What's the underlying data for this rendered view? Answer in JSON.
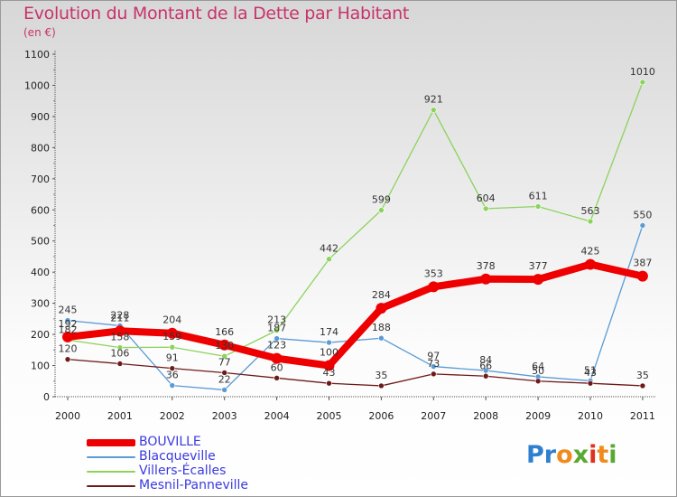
{
  "title": "Evolution du Montant de la Dette par Habitant",
  "subtitle": "(en €)",
  "logo": {
    "text": "Proxiti",
    "letters": [
      {
        "ch": "P",
        "color": "#2f7fd0"
      },
      {
        "ch": "r",
        "color": "#2f7fd0"
      },
      {
        "ch": "o",
        "color": "#f08a1c"
      },
      {
        "ch": "x",
        "color": "#5aa830"
      },
      {
        "ch": "i",
        "color": "#e0301e"
      },
      {
        "ch": "t",
        "color": "#f08a1c"
      },
      {
        "ch": "i",
        "color": "#5aa830"
      }
    ]
  },
  "chart_data": {
    "type": "line",
    "x": [
      "2000",
      "2001",
      "2002",
      "2003",
      "2004",
      "2005",
      "2006",
      "2007",
      "2008",
      "2009",
      "2010",
      "2011"
    ],
    "ylim": [
      0,
      1100
    ],
    "yticks": [
      0,
      100,
      200,
      300,
      400,
      500,
      600,
      700,
      800,
      900,
      1000,
      1100
    ],
    "grid": false,
    "legend_position": "bottom-left",
    "series": [
      {
        "name": "BOUVILLE",
        "color": "#ee0000",
        "values": [
          192,
          211,
          204,
          166,
          123,
          100,
          284,
          353,
          378,
          377,
          425,
          387
        ]
      },
      {
        "name": "Blacqueville",
        "color": "#5b9bd5",
        "values": [
          245,
          228,
          36,
          22,
          187,
          174,
          188,
          97,
          84,
          64,
          51,
          550
        ]
      },
      {
        "name": "Villers-Écalles",
        "color": "#8cd35c",
        "values": [
          182,
          158,
          159,
          130,
          213,
          442,
          599,
          921,
          604,
          611,
          563,
          1010
        ]
      },
      {
        "name": "Mesnil-Panneville",
        "color": "#6e1a1a",
        "values": [
          120,
          106,
          91,
          77,
          60,
          43,
          35,
          73,
          66,
          50,
          43,
          35
        ]
      }
    ]
  }
}
